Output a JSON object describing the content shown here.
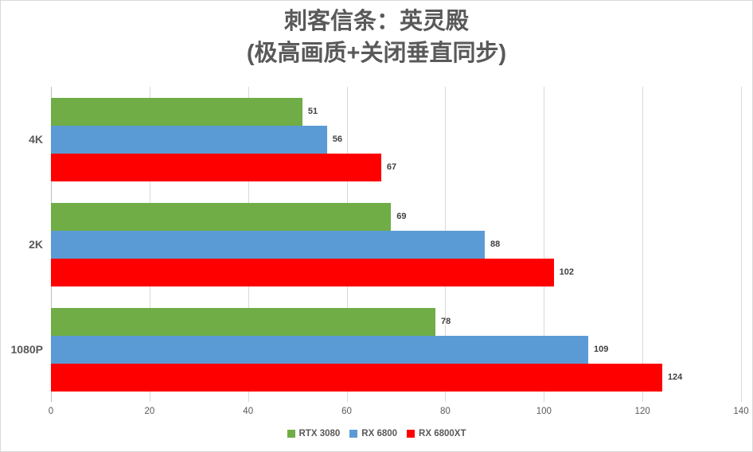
{
  "title": {
    "line1": "刺客信条：英灵殿",
    "line2": "(极高画质+关闭垂直同步)"
  },
  "chart_data": {
    "type": "bar",
    "orientation": "horizontal",
    "title": "刺客信条：英灵殿 (极高画质+关闭垂直同步)",
    "categories": [
      "4K",
      "2K",
      "1080P"
    ],
    "series": [
      {
        "name": "RTX 3080",
        "color": "#70AD47",
        "values": [
          51,
          69,
          78
        ]
      },
      {
        "name": "RX 6800",
        "color": "#5B9BD5",
        "values": [
          56,
          88,
          109
        ]
      },
      {
        "name": "RX 6800XT",
        "color": "#FF0000",
        "values": [
          67,
          102,
          124
        ]
      }
    ],
    "xlabel": "",
    "ylabel": "",
    "xlim": [
      0,
      140
    ],
    "x_ticks": [
      0,
      20,
      40,
      60,
      80,
      100,
      120,
      140
    ],
    "grid": true,
    "data_labels": true,
    "legend_position": "bottom"
  },
  "colors": {
    "title_text": "#595959",
    "axis_text": "#595959",
    "value_label_text": "#404040",
    "gridline": "#D9D9D9",
    "axis_line": "#BFBFBF",
    "background": "#FFFFFF",
    "frame_border": "#D9D9D9"
  }
}
